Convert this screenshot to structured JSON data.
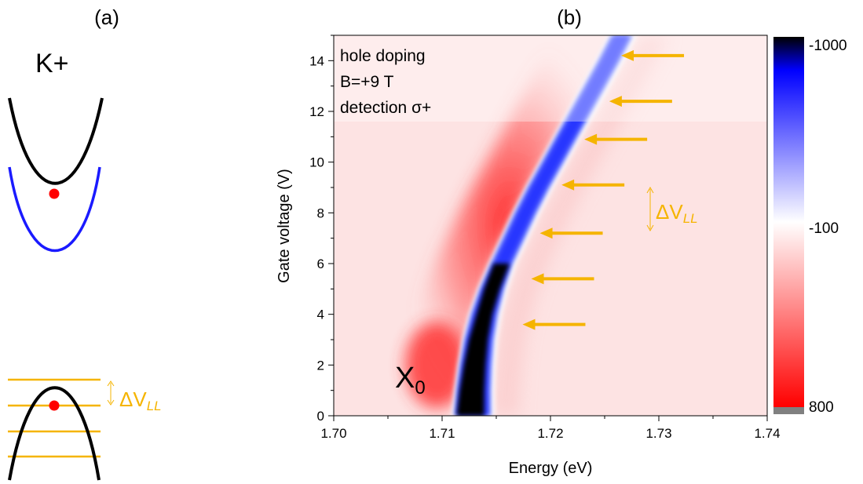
{
  "panel_a": {
    "label": "(a)",
    "valley_label": "K+",
    "delta_label": "ΔV",
    "delta_sub": "LL",
    "colors": {
      "upper_band": "#000000",
      "lower_band": "#1a1aff",
      "carrier_dot": "#ff0000",
      "landau_levels": "#f5b400",
      "valence_band": "#000000"
    }
  },
  "panel_b": {
    "label": "(b)",
    "annotations": [
      "hole doping",
      "B=+9 T",
      "detection σ+"
    ],
    "peak_label": "X",
    "peak_sub": "0",
    "delta_label": "ΔV",
    "delta_sub": "LL",
    "colorbar": {
      "ticks": [
        "-1000",
        "-100",
        "800"
      ],
      "colors": {
        "min": "#000000",
        "low": "#0000ff",
        "mid": "#ffffff",
        "high": "#ff0000",
        "overflow": "#808080"
      }
    },
    "arrow_color": "#f5b400"
  },
  "chart_data": {
    "type": "heatmap",
    "xlabel": "Energy (eV)",
    "ylabel": "Gate voltage (V)",
    "xlim": [
      1.7,
      1.74
    ],
    "ylim": [
      0,
      15
    ],
    "x_ticks": [
      "1.70",
      "1.71",
      "1.72",
      "1.73",
      "1.74"
    ],
    "y_ticks": [
      "0",
      "2",
      "4",
      "6",
      "8",
      "10",
      "12",
      "14"
    ],
    "x_tick_values": [
      1.7,
      1.71,
      1.72,
      1.73,
      1.74
    ],
    "y_tick_values": [
      0,
      2,
      4,
      6,
      8,
      10,
      12,
      14
    ],
    "ridge": {
      "gate_voltage": [
        0,
        1,
        2,
        3,
        4,
        5,
        6,
        7,
        8,
        9,
        10,
        11,
        12,
        13,
        14,
        15
      ],
      "energy": [
        1.7128,
        1.7129,
        1.7131,
        1.7134,
        1.7139,
        1.7146,
        1.7155,
        1.7166,
        1.7177,
        1.7189,
        1.7202,
        1.7215,
        1.7228,
        1.7241,
        1.7254,
        1.7266
      ]
    },
    "landau_arrows": {
      "gate_voltage": [
        3.6,
        5.4,
        7.2,
        9.1,
        10.9,
        12.4,
        14.2
      ],
      "energy": [
        1.7167,
        1.7175,
        1.7183,
        1.7203,
        1.7224,
        1.7247,
        1.7258
      ]
    },
    "colorbar_range": [
      -1000,
      800
    ],
    "grid": false
  }
}
